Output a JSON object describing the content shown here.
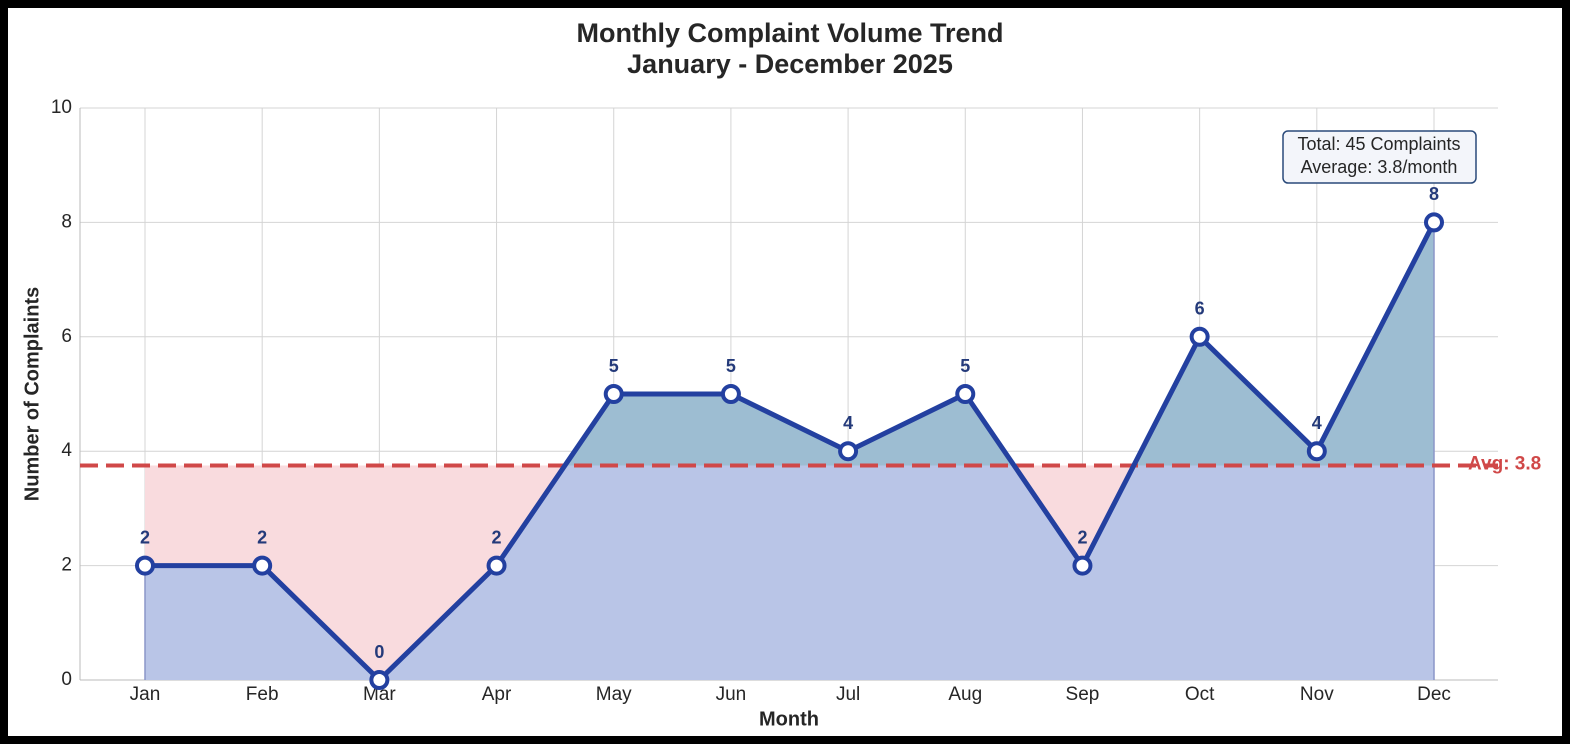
{
  "chart_data": {
    "type": "line",
    "title": "Monthly Complaint Volume Trend",
    "subtitle": "January - December 2025",
    "x_label": "Month",
    "y_label": "Number of Complaints",
    "categories": [
      "Jan",
      "Feb",
      "Mar",
      "Apr",
      "May",
      "Jun",
      "Jul",
      "Aug",
      "Sep",
      "Oct",
      "Nov",
      "Dec"
    ],
    "series": [
      {
        "name": "Complaints",
        "color": "#2340a0",
        "values": [
          2,
          2,
          0,
          2,
          5,
          5,
          4,
          5,
          2,
          6,
          4,
          8
        ]
      }
    ],
    "average": 3.75,
    "average_label": "Avg: 3.8",
    "average_color": "#d04848",
    "annotation": [
      "Total: 45 Complaints",
      "Average: 3.8/month"
    ],
    "fill_below_color": "#b9c5e7",
    "fill_above_avg_color": "#9dbdd2",
    "fill_gap_color": "#f9dbde",
    "ylim": [
      0,
      10
    ],
    "yticks": [
      0,
      2,
      4,
      6,
      8,
      10
    ],
    "grid": true
  }
}
